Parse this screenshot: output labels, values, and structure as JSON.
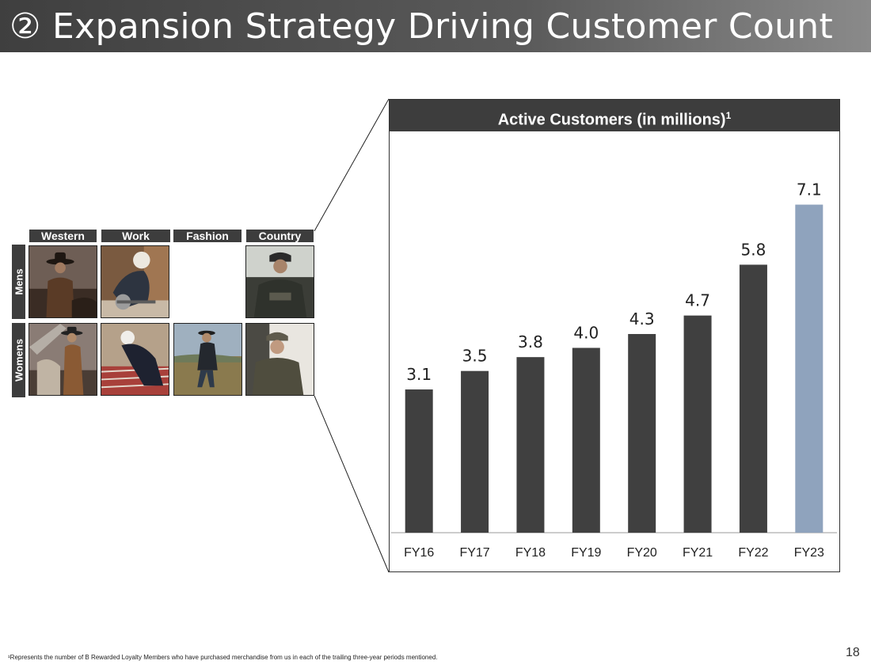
{
  "slide": {
    "title": "② Expansion Strategy Driving Customer Count",
    "page_number": "18",
    "footnote": "¹Represents the number of B Rewarded Loyalty Members who have purchased merchandise from us in each of the trailing three-year periods mentioned."
  },
  "grid": {
    "columns": [
      "Western",
      "Work",
      "Fashion",
      "Country"
    ],
    "rows": [
      "Mens",
      "Womens"
    ]
  },
  "chart_data": {
    "type": "bar",
    "title": "Active Customers (in millions)",
    "title_superscript": "1",
    "categories": [
      "FY16",
      "FY17",
      "FY18",
      "FY19",
      "FY20",
      "FY21",
      "FY22",
      "FY23"
    ],
    "values": [
      3.1,
      3.5,
      3.8,
      4.0,
      4.3,
      4.7,
      5.8,
      7.1
    ],
    "value_labels": [
      "3.1",
      "3.5",
      "3.8",
      "4.0",
      "4.3",
      "4.7",
      "5.8",
      "7.1"
    ],
    "ylim": [
      0,
      8
    ],
    "grid": false,
    "colors": {
      "bar": "#404040",
      "highlight": "#8fa3bd",
      "highlight_index": 7
    }
  }
}
